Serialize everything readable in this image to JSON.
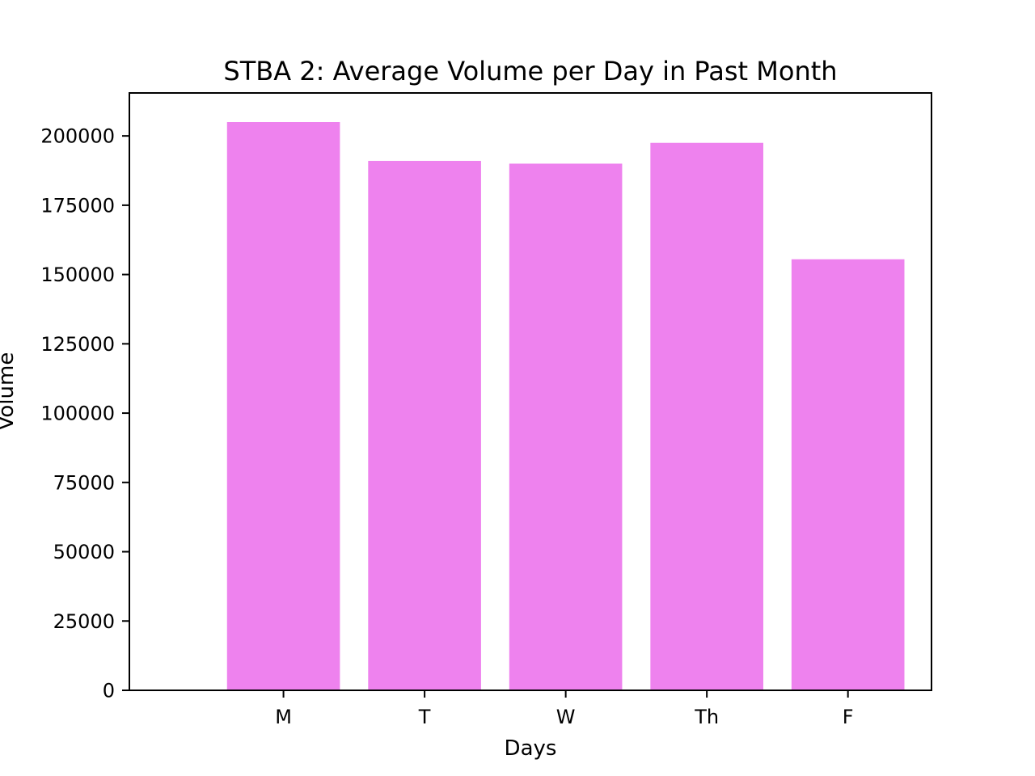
{
  "chart_data": {
    "type": "bar",
    "title": "STBA 2: Average Volume per Day in Past Month",
    "xlabel": "Days",
    "ylabel": "Volume",
    "categories": [
      "M",
      "T",
      "W",
      "Th",
      "F"
    ],
    "values": [
      205000,
      191000,
      190000,
      197500,
      155500
    ],
    "ylim": [
      0,
      215500
    ],
    "yticks": [
      0,
      25000,
      50000,
      75000,
      100000,
      125000,
      150000,
      175000,
      200000
    ],
    "ytick_labels": [
      "0",
      "25000",
      "50000",
      "75000",
      "100000",
      "125000",
      "150000",
      "175000",
      "200000"
    ],
    "grid": false,
    "legend": "none",
    "colors": {
      "bar": "#ee82ee",
      "axes": "#000000",
      "background": "#ffffff"
    }
  }
}
